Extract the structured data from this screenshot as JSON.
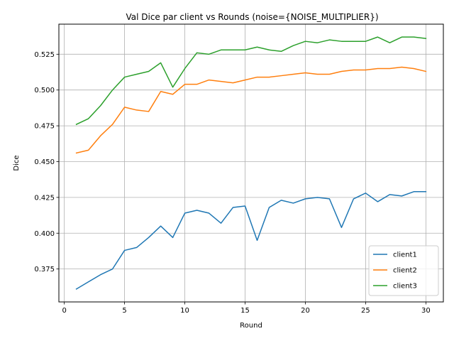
{
  "chart_data": {
    "type": "line",
    "title": "Val Dice par client vs Rounds (noise={NOISE_MULTIPLIER})",
    "xlabel": "Round",
    "ylabel": "Dice",
    "xlim": [
      -0.45,
      31.45
    ],
    "ylim": [
      0.352,
      0.546
    ],
    "xticks": [
      0,
      5,
      10,
      15,
      20,
      25,
      30
    ],
    "xtick_labels": [
      "0",
      "5",
      "10",
      "15",
      "20",
      "25",
      "30"
    ],
    "yticks": [
      0.375,
      0.4,
      0.425,
      0.45,
      0.475,
      0.5,
      0.525
    ],
    "ytick_labels": [
      "0.375",
      "0.400",
      "0.425",
      "0.450",
      "0.475",
      "0.500",
      "0.525"
    ],
    "grid": true,
    "legend_position": "lower-right",
    "x": [
      1,
      2,
      3,
      4,
      5,
      6,
      7,
      8,
      9,
      10,
      11,
      12,
      13,
      14,
      15,
      16,
      17,
      18,
      19,
      20,
      21,
      22,
      23,
      24,
      25,
      26,
      27,
      28,
      29,
      30
    ],
    "series": [
      {
        "name": "client1",
        "color": "#1f77b4",
        "values": [
          0.361,
          0.366,
          0.371,
          0.375,
          0.388,
          0.39,
          0.397,
          0.405,
          0.397,
          0.414,
          0.416,
          0.414,
          0.407,
          0.418,
          0.419,
          0.395,
          0.418,
          0.423,
          0.421,
          0.424,
          0.425,
          0.424,
          0.404,
          0.424,
          0.428,
          0.422,
          0.427,
          0.426,
          0.429,
          0.429
        ]
      },
      {
        "name": "client2",
        "color": "#ff7f0e",
        "values": [
          0.456,
          0.458,
          0.468,
          0.476,
          0.488,
          0.486,
          0.485,
          0.499,
          0.497,
          0.504,
          0.504,
          0.507,
          0.506,
          0.505,
          0.507,
          0.509,
          0.509,
          0.51,
          0.511,
          0.512,
          0.511,
          0.511,
          0.513,
          0.514,
          0.514,
          0.515,
          0.515,
          0.516,
          0.515,
          0.513
        ]
      },
      {
        "name": "client3",
        "color": "#2ca02c",
        "values": [
          0.476,
          0.48,
          0.489,
          0.5,
          0.509,
          0.511,
          0.513,
          0.519,
          0.502,
          0.515,
          0.526,
          0.525,
          0.528,
          0.528,
          0.528,
          0.53,
          0.528,
          0.527,
          0.531,
          0.534,
          0.533,
          0.535,
          0.534,
          0.534,
          0.534,
          0.537,
          0.533,
          0.537,
          0.537,
          0.536
        ]
      }
    ]
  }
}
